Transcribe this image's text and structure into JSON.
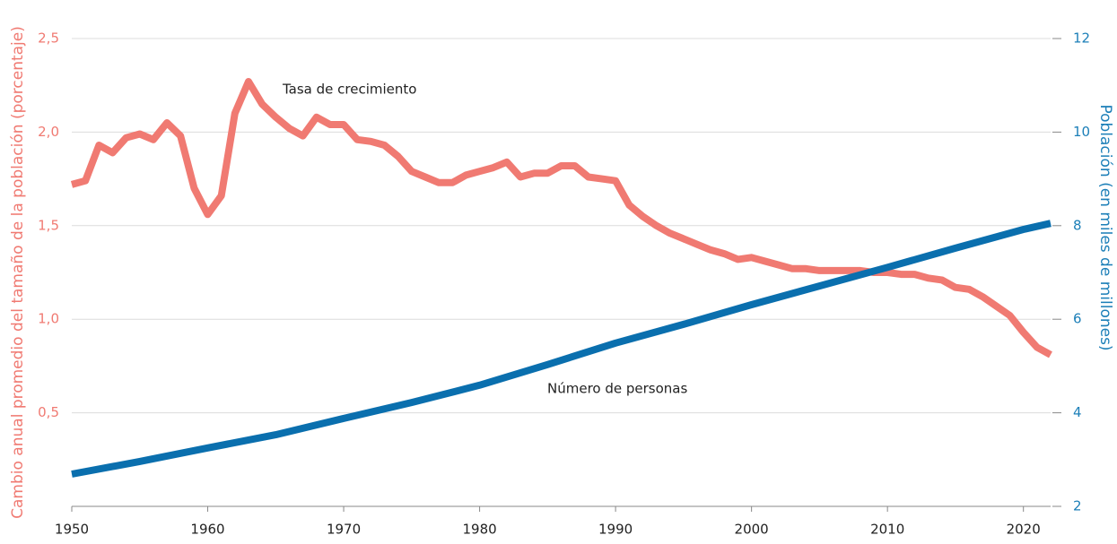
{
  "chart_data": {
    "type": "line",
    "y_label": "Cambio anual promedio del tamaño de la población (porcentaje)",
    "y2_label": "Población (en miles de millones)",
    "annotations": [
      "Tasa de crecimiento",
      "Número de personas"
    ],
    "xlim": [
      1950,
      2022
    ],
    "xticks": [
      1950,
      1960,
      1970,
      1980,
      1990,
      2000,
      2010,
      2020
    ],
    "ylim": [
      0,
      2.5
    ],
    "yticks": [
      {
        "value": 0.5,
        "label": "0,5"
      },
      {
        "value": 1.0,
        "label": "1,0"
      },
      {
        "value": 1.5,
        "label": "1,5"
      },
      {
        "value": 2.0,
        "label": "2,0"
      },
      {
        "value": 2.5,
        "label": "2,5"
      }
    ],
    "y2lim": [
      2,
      12
    ],
    "y2ticks": [
      2,
      4,
      6,
      8,
      10,
      12
    ],
    "grid": true,
    "y_color": "#f07a72",
    "y2_color": "#1c7fb8",
    "series": [
      {
        "name": "Tasa de crecimiento",
        "color": "#f07a72",
        "x": [
          1950,
          1951,
          1952,
          1953,
          1954,
          1955,
          1956,
          1957,
          1958,
          1959,
          1960,
          1961,
          1962,
          1963,
          1964,
          1965,
          1966,
          1967,
          1968,
          1969,
          1970,
          1971,
          1972,
          1973,
          1974,
          1975,
          1976,
          1977,
          1978,
          1979,
          1980,
          1981,
          1982,
          1983,
          1984,
          1985,
          1986,
          1987,
          1988,
          1989,
          1990,
          1991,
          1992,
          1993,
          1994,
          1995,
          1996,
          1997,
          1998,
          1999,
          2000,
          2001,
          2002,
          2003,
          2004,
          2005,
          2006,
          2007,
          2008,
          2009,
          2010,
          2011,
          2012,
          2013,
          2014,
          2015,
          2016,
          2017,
          2018,
          2019,
          2020,
          2021,
          2022
        ],
        "values": [
          1.72,
          1.74,
          1.93,
          1.89,
          1.97,
          1.99,
          1.96,
          2.05,
          1.98,
          1.7,
          1.56,
          1.66,
          2.1,
          2.27,
          2.15,
          2.08,
          2.02,
          1.98,
          2.08,
          2.04,
          2.04,
          1.96,
          1.95,
          1.93,
          1.87,
          1.79,
          1.76,
          1.73,
          1.73,
          1.77,
          1.79,
          1.81,
          1.84,
          1.76,
          1.78,
          1.78,
          1.82,
          1.82,
          1.76,
          1.75,
          1.74,
          1.61,
          1.55,
          1.5,
          1.46,
          1.43,
          1.4,
          1.37,
          1.35,
          1.32,
          1.33,
          1.31,
          1.29,
          1.27,
          1.27,
          1.26,
          1.26,
          1.26,
          1.26,
          1.25,
          1.25,
          1.24,
          1.24,
          1.22,
          1.21,
          1.17,
          1.16,
          1.12,
          1.07,
          1.02,
          0.93,
          0.85,
          0.81
        ]
      },
      {
        "name": "Número de personas",
        "color": "#0a6fae",
        "axis": "y2",
        "x": [
          1950,
          1955,
          1960,
          1965,
          1970,
          1975,
          1980,
          1985,
          1990,
          1995,
          2000,
          2005,
          2010,
          2015,
          2020,
          2022
        ],
        "values": [
          2.69,
          2.96,
          3.25,
          3.53,
          3.88,
          4.22,
          4.59,
          5.03,
          5.49,
          5.89,
          6.31,
          6.71,
          7.11,
          7.52,
          7.92,
          8.05
        ]
      }
    ]
  }
}
